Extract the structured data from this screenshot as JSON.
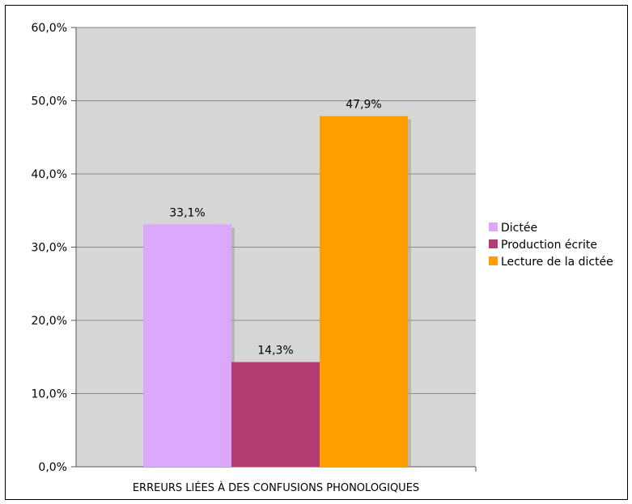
{
  "chart_data": {
    "type": "bar",
    "title": "",
    "xlabel": "",
    "ylabel": "",
    "categories": [
      "ERREURS LIÉES À DES CONFUSIONS PHONOLOGIQUES"
    ],
    "series": [
      {
        "name": "Dictée",
        "values": [
          33.1
        ],
        "color": "#dca8fc",
        "label": "33,1%"
      },
      {
        "name": "Production écrite",
        "values": [
          14.3
        ],
        "color": "#b33d72",
        "label": "14,3%"
      },
      {
        "name": "Lecture de la dictée",
        "values": [
          47.9
        ],
        "color": "#ff9e00",
        "label": "47,9%"
      }
    ],
    "ylim": [
      0,
      60
    ],
    "yticks": [
      0,
      10,
      20,
      30,
      40,
      50,
      60
    ],
    "ytick_labels": [
      "0,0%",
      "10,0%",
      "20,0%",
      "30,0%",
      "40,0%",
      "50,0%",
      "60,0%"
    ],
    "grid": true,
    "legend_position": "right",
    "plot_background": "#d6d6d6"
  }
}
